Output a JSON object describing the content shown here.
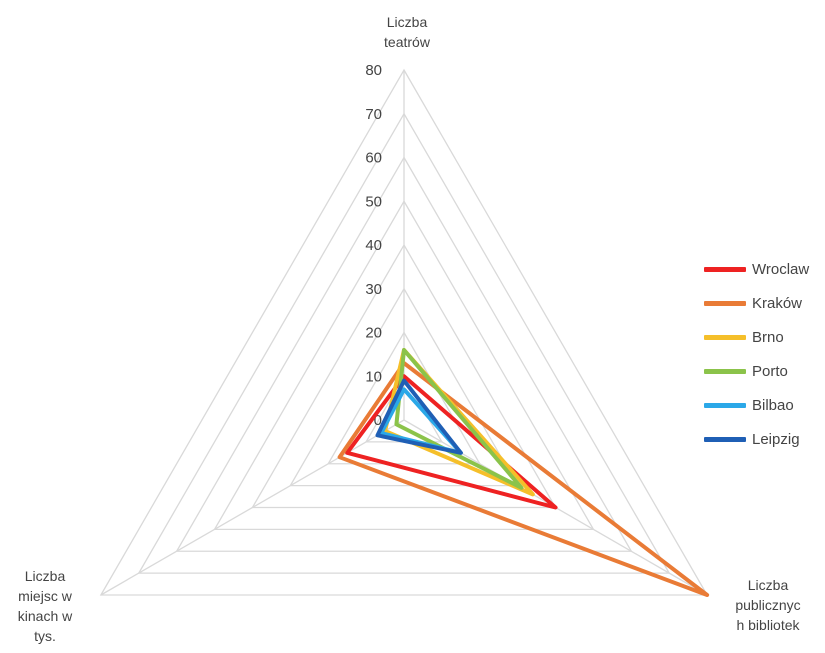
{
  "chart_data": {
    "type": "radar",
    "axes": [
      [
        "Liczba",
        "teatrów"
      ],
      [
        "Liczba",
        "publicznyc",
        "h bibliotek"
      ],
      [
        "Liczba",
        "miejsc w",
        "kinach w",
        "tys."
      ]
    ],
    "rlim": [
      0,
      80
    ],
    "ticks": [
      0,
      10,
      20,
      30,
      40,
      50,
      60,
      70,
      80
    ],
    "grid": true,
    "legend_position": "right",
    "series": [
      {
        "name": "Wroclaw",
        "color": "#ee2222",
        "values": [
          10,
          40,
          15
        ]
      },
      {
        "name": "Kraków",
        "color": "#e97b36",
        "values": [
          13,
          80,
          17
        ]
      },
      {
        "name": "Brno",
        "color": "#f5bf2a",
        "values": [
          16,
          34,
          5
        ]
      },
      {
        "name": "Porto",
        "color": "#8bc34a",
        "values": [
          16,
          31,
          2
        ]
      },
      {
        "name": "Bilbao",
        "color": "#2ba8e8",
        "values": [
          7,
          15,
          6
        ]
      },
      {
        "name": "Leipzig",
        "color": "#1f5fb5",
        "values": [
          9,
          15,
          7
        ]
      }
    ]
  }
}
